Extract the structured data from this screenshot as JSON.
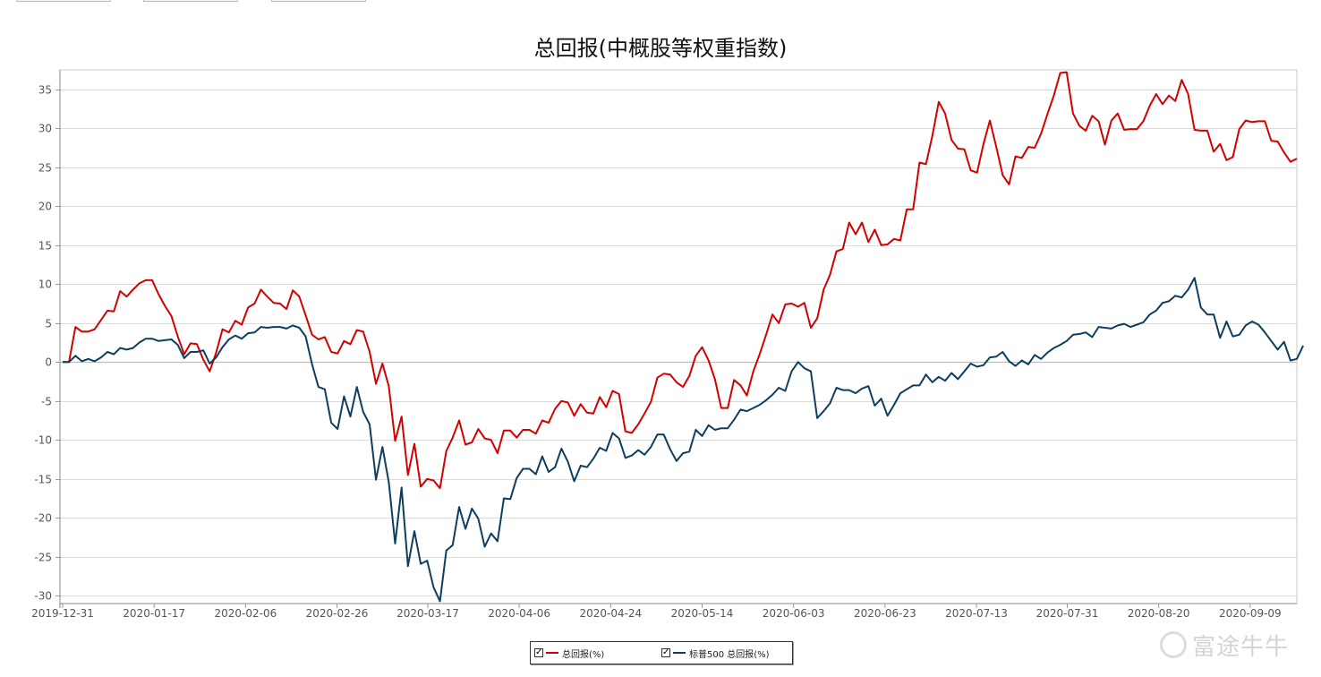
{
  "toolbar": {
    "buttons": [
      "",
      "",
      ""
    ]
  },
  "chart_data": {
    "type": "line",
    "title": "总回报(中概股等权重指数)",
    "xlabel": "",
    "ylabel": "",
    "ylim": [
      -31,
      37.5
    ],
    "yticks": [
      -30,
      -25,
      -20,
      -15,
      -10,
      -5,
      0,
      5,
      10,
      15,
      20,
      25,
      30,
      35
    ],
    "xtick_labels": [
      "2019-12-31",
      "2020-01-17",
      "2020-02-06",
      "2020-02-26",
      "2020-03-17",
      "2020-04-06",
      "2020-04-24",
      "2020-05-14",
      "2020-06-03",
      "2020-06-23",
      "2020-07-13",
      "2020-07-31",
      "2020-08-20",
      "2020-09-09"
    ],
    "xtick_positions": [
      0,
      14.3,
      28.6,
      42.9,
      57.1,
      71.4,
      85.7,
      100,
      114.3,
      128.6,
      142.9,
      157.1,
      171.4,
      185.7
    ],
    "grid": true,
    "legend_position": "bottom-center",
    "series": [
      {
        "name": "总回报(%)",
        "color": "#d40000",
        "values": [
          0,
          0,
          4.5,
          3.9,
          3.9,
          4.2,
          5.4,
          6.6,
          6.5,
          9.1,
          8.4,
          9.3,
          10.1,
          10.5,
          10.5,
          8.7,
          7.2,
          5.9,
          3.3,
          1.0,
          2.4,
          2.3,
          0.3,
          -1.2,
          1.2,
          4.2,
          3.8,
          5.3,
          4.8,
          7.0,
          7.5,
          9.3,
          8.4,
          7.6,
          7.5,
          6.8,
          9.2,
          8.4,
          6.0,
          3.5,
          2.9,
          3.2,
          1.3,
          1.1,
          2.7,
          2.3,
          4.1,
          3.9,
          1.3,
          -2.8,
          -0.2,
          -3.1,
          -10.1,
          -7.0,
          -14.5,
          -10.5,
          -16.0,
          -15.0,
          -15.2,
          -16.2,
          -11.4,
          -9.7,
          -7.5,
          -10.6,
          -10.3,
          -8.6,
          -9.8,
          -10.0,
          -11.7,
          -8.8,
          -8.8,
          -9.7,
          -8.7,
          -8.7,
          -9.2,
          -7.5,
          -7.8,
          -6.0,
          -5.0,
          -5.2,
          -6.9,
          -5.4,
          -6.5,
          -6.6,
          -4.5,
          -5.8,
          -3.7,
          -4.1,
          -8.9,
          -9.1,
          -8.0,
          -6.6,
          -5.1,
          -2.0,
          -1.5,
          -1.6,
          -2.6,
          -3.2,
          -1.8,
          0.8,
          1.9,
          0.2,
          -2.2,
          -5.9,
          -5.9,
          -2.3,
          -3.0,
          -4.3,
          -1.2,
          1.0,
          3.5,
          6.1,
          5.0,
          7.4,
          7.5,
          7.1,
          7.6,
          4.4,
          5.6,
          9.3,
          11.2,
          14.2,
          14.5,
          17.9,
          16.4,
          17.9,
          15.4,
          17.0,
          15.0,
          15.1,
          15.8,
          15.6,
          19.6,
          19.6,
          25.6,
          25.4,
          29.0,
          33.4,
          31.9,
          28.5,
          27.4,
          27.3,
          24.6,
          24.3,
          28.0,
          31.0,
          27.6,
          24.0,
          22.8,
          26.4,
          26.2,
          27.6,
          27.5,
          29.3,
          31.8,
          34.2,
          37.1,
          37.2,
          31.9,
          30.3,
          29.7,
          31.6,
          30.9,
          27.9,
          31.0,
          31.9,
          29.8,
          29.9,
          29.9,
          30.9,
          32.9,
          34.4,
          33.1,
          34.2,
          33.5,
          36.2,
          34.4,
          29.8,
          29.7,
          29.7,
          27.0,
          28.0,
          25.9,
          26.3,
          29.9,
          31.0,
          30.8,
          30.9,
          30.9,
          28.4,
          28.3,
          26.9,
          25.7,
          26.1
        ]
      },
      {
        "name": "标普500 总回报(%)",
        "color": "#0e3e5f",
        "values": [
          0,
          0,
          0.8,
          0.1,
          0.4,
          0.1,
          0.6,
          1.3,
          1.0,
          1.8,
          1.6,
          1.8,
          2.5,
          3.0,
          3.0,
          2.7,
          2.8,
          2.9,
          2.2,
          0.5,
          1.3,
          1.3,
          1.5,
          -0.2,
          0.6,
          1.9,
          2.9,
          3.4,
          3.0,
          3.7,
          3.8,
          4.5,
          4.4,
          4.5,
          4.5,
          4.3,
          4.7,
          4.4,
          3.3,
          -0.3,
          -3.2,
          -3.5,
          -7.8,
          -8.6,
          -4.4,
          -7.0,
          -3.2,
          -6.4,
          -8.0,
          -15.1,
          -10.9,
          -15.4,
          -23.3,
          -16.1,
          -26.2,
          -21.7,
          -25.9,
          -25.5,
          -28.9,
          -30.7,
          -24.2,
          -23.5,
          -18.6,
          -21.4,
          -18.8,
          -20.1,
          -23.7,
          -22.0,
          -23.0,
          -17.5,
          -17.6,
          -14.9,
          -13.7,
          -13.7,
          -14.4,
          -12.1,
          -14.1,
          -13.5,
          -11.1,
          -12.8,
          -15.3,
          -13.3,
          -13.5,
          -12.4,
          -11.0,
          -11.4,
          -9.1,
          -9.8,
          -12.3,
          -12.0,
          -11.3,
          -11.9,
          -10.9,
          -9.3,
          -9.3,
          -11.2,
          -12.7,
          -11.7,
          -11.5,
          -8.7,
          -9.5,
          -8.1,
          -8.7,
          -8.5,
          -8.5,
          -7.4,
          -6.1,
          -6.3,
          -5.9,
          -5.5,
          -4.9,
          -4.2,
          -3.3,
          -3.7,
          -1.2,
          0.0,
          -0.8,
          -1.2,
          -7.2,
          -6.3,
          -5.3,
          -3.3,
          -3.6,
          -3.6,
          -4.0,
          -3.4,
          -3.1,
          -5.6,
          -4.7,
          -6.9,
          -5.5,
          -4.0,
          -3.5,
          -3.0,
          -3.0,
          -1.6,
          -2.6,
          -1.9,
          -2.4,
          -1.4,
          -2.2,
          -1.2,
          -0.2,
          -0.6,
          -0.4,
          0.6,
          0.7,
          1.3,
          0.1,
          -0.5,
          0.2,
          -0.3,
          0.9,
          0.4,
          1.2,
          1.8,
          2.2,
          2.7,
          3.5,
          3.6,
          3.8,
          3.2,
          4.5,
          4.4,
          4.3,
          4.7,
          4.9,
          4.5,
          4.8,
          5.1,
          6.1,
          6.6,
          7.6,
          7.8,
          8.5,
          8.3,
          9.3,
          10.8,
          7.0,
          6.1,
          6.1,
          3.1,
          5.2,
          3.3,
          3.5,
          4.7,
          5.2,
          4.8,
          3.8,
          2.7,
          1.6,
          2.6,
          0.2,
          0.4,
          2.1
        ]
      }
    ]
  },
  "legend": {
    "items": [
      {
        "label": "总回报(%)",
        "checked": "✓",
        "color": "#d40000"
      },
      {
        "label": "标普500 总回报(%)",
        "checked": "✓",
        "color": "#0e3e5f"
      }
    ]
  },
  "watermark": {
    "text": "富途牛牛"
  }
}
